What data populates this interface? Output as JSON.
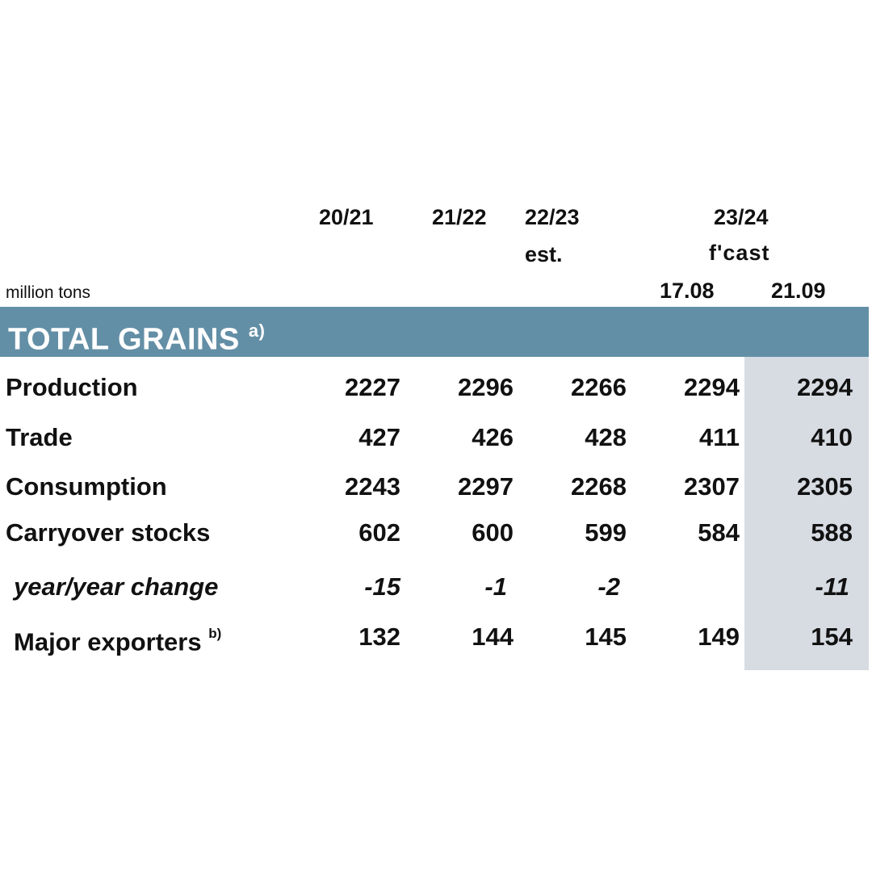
{
  "table": {
    "unit_label": "million tons",
    "columns": [
      {
        "year": "20/21",
        "sub": ""
      },
      {
        "year": "21/22",
        "sub": ""
      },
      {
        "year": "22/23",
        "sub": "est."
      }
    ],
    "forecast_group": {
      "year": "23/24",
      "sub": "f'cast",
      "dates": [
        "17.08",
        "21.09"
      ]
    },
    "section_title": "TOTAL GRAINS",
    "section_note": "a)",
    "rows": [
      {
        "label": "Production",
        "note": "",
        "values": [
          "2227",
          "2296",
          "2266",
          "2294",
          "2294"
        ]
      },
      {
        "label": "Trade",
        "note": "",
        "values": [
          "427",
          "426",
          "428",
          "411",
          "410"
        ]
      },
      {
        "label": "Consumption",
        "note": "",
        "values": [
          "2243",
          "2297",
          "2268",
          "2307",
          "2305"
        ]
      },
      {
        "label": "Carryover stocks",
        "note": "",
        "values": [
          "602",
          "600",
          "599",
          "584",
          "588"
        ]
      },
      {
        "label": "year/year change",
        "note": "",
        "values": [
          "-15",
          "-1",
          "-2",
          "",
          "-11"
        ]
      },
      {
        "label": "Major exporters",
        "note": "b)",
        "values": [
          "132",
          "144",
          "145",
          "149",
          "154"
        ]
      }
    ],
    "colors": {
      "band": "#638fa6",
      "highlight": "#d7dce3"
    }
  }
}
